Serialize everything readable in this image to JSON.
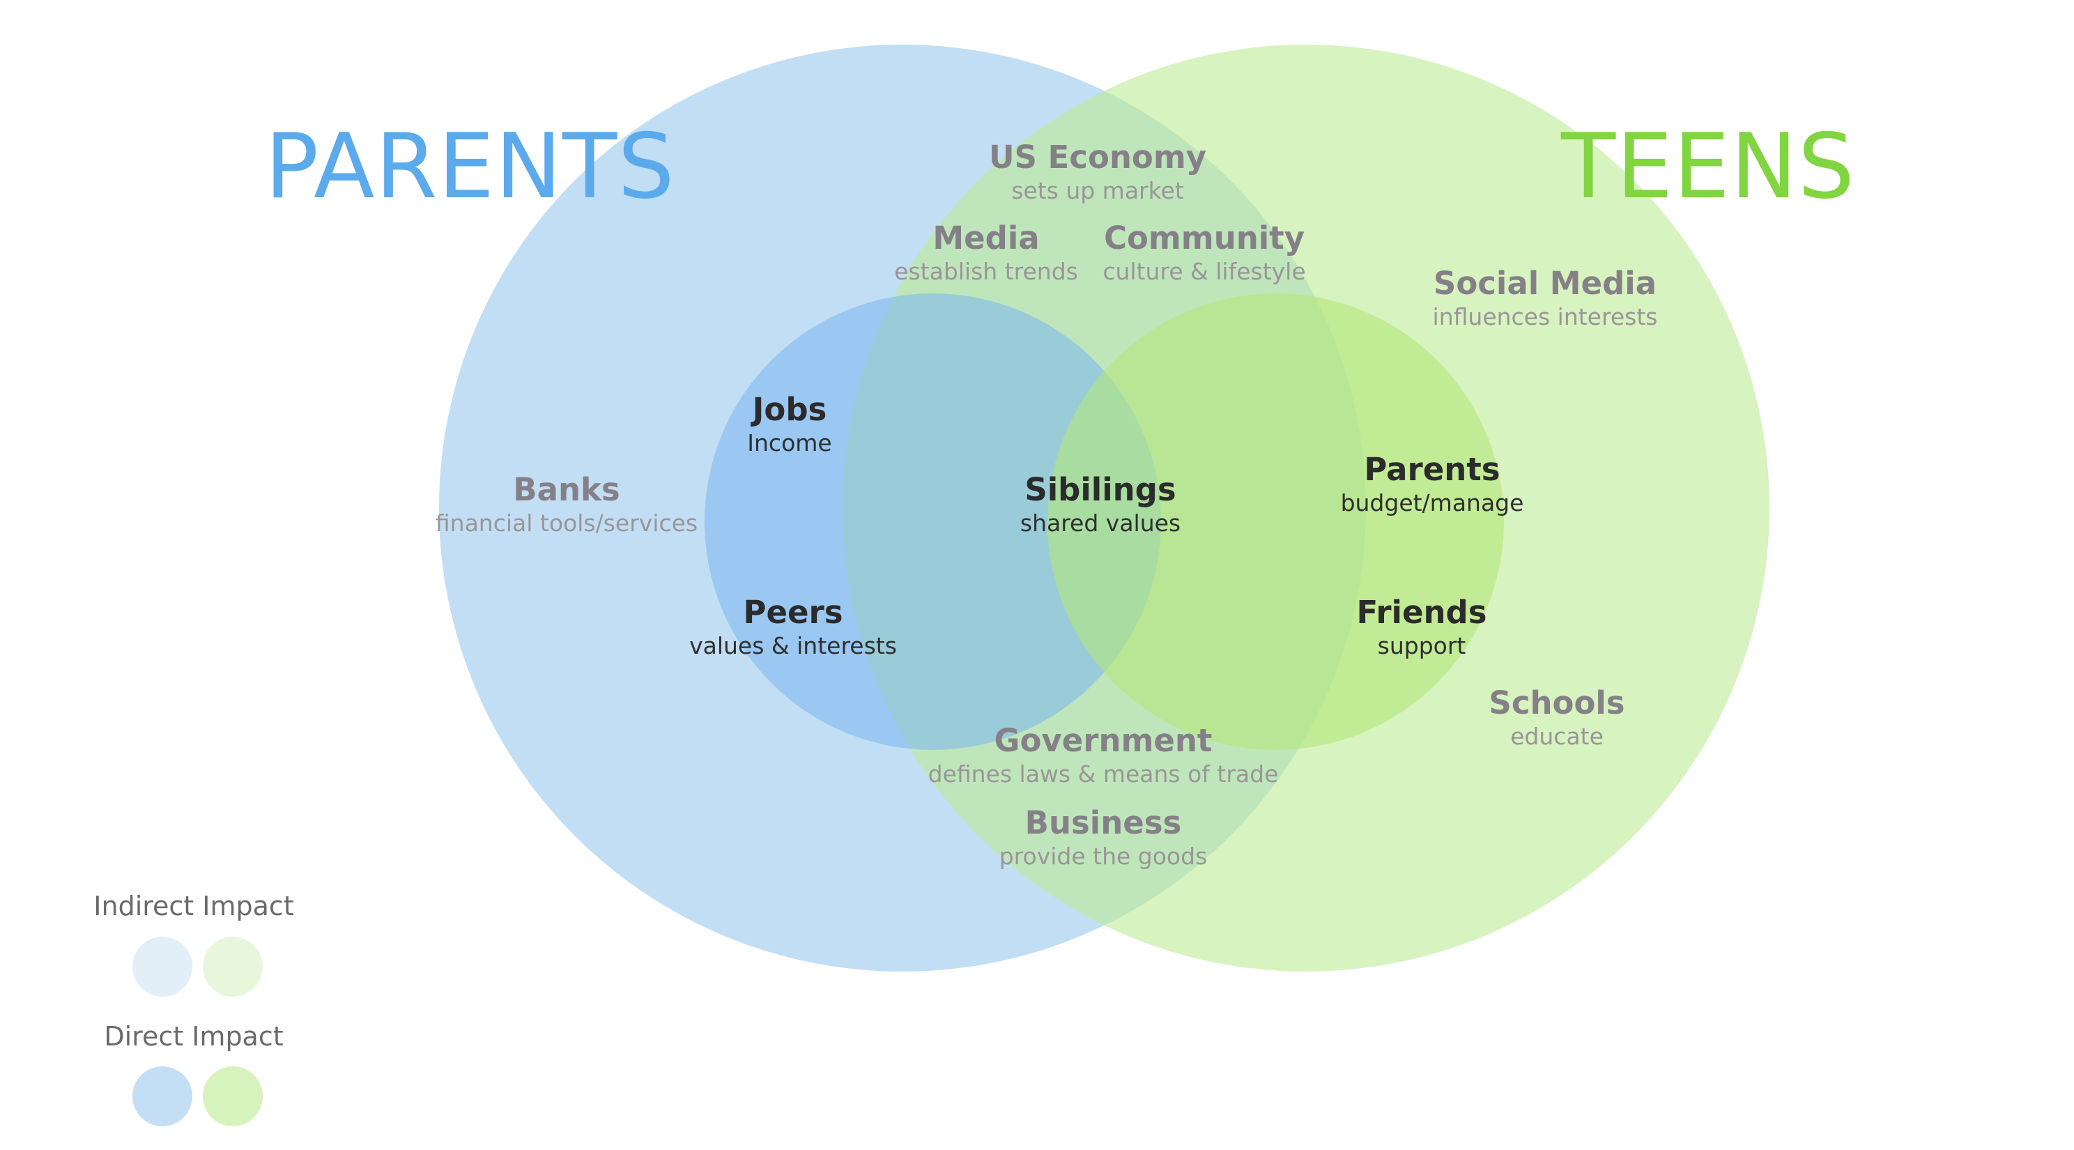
{
  "titles": {
    "parents": "PARENTS",
    "teens": "TEENS"
  },
  "nodes": {
    "us_economy": {
      "name": "US Economy",
      "desc": "sets up market"
    },
    "media": {
      "name": "Media",
      "desc": "establish trends"
    },
    "community": {
      "name": "Community",
      "desc": "culture & lifestyle"
    },
    "social_media": {
      "name": "Social Media",
      "desc": "influences interests"
    },
    "jobs": {
      "name": "Jobs",
      "desc": "Income"
    },
    "banks": {
      "name": "Banks",
      "desc": "financial tools/services"
    },
    "siblings": {
      "name": "Sibilings",
      "desc": "shared values"
    },
    "parents": {
      "name": "Parents",
      "desc": "budget/manage"
    },
    "peers": {
      "name": "Peers",
      "desc": "values & interests"
    },
    "friends": {
      "name": "Friends",
      "desc": "support"
    },
    "schools": {
      "name": "Schools",
      "desc": "educate"
    },
    "government": {
      "name": "Government",
      "desc": "defines laws & means of trade"
    },
    "business": {
      "name": "Business",
      "desc": "provide the goods"
    }
  },
  "legend": {
    "indirect_label": "Indirect Impact",
    "direct_label": "Direct Impact"
  },
  "colors": {
    "parents_title": "#5baaeb",
    "teens_title": "#80d540",
    "parents_circle": "#9ac8ee",
    "teens_circle": "#bdeb95",
    "parents_direct_circle": "#7ab6f0",
    "teens_direct_circle": "#b4e67c",
    "legend_indirect_blue": "#e2eff9",
    "legend_indirect_green": "#e8f7dc",
    "legend_direct_blue": "#c4def5",
    "legend_direct_green": "#d6f3bd"
  }
}
